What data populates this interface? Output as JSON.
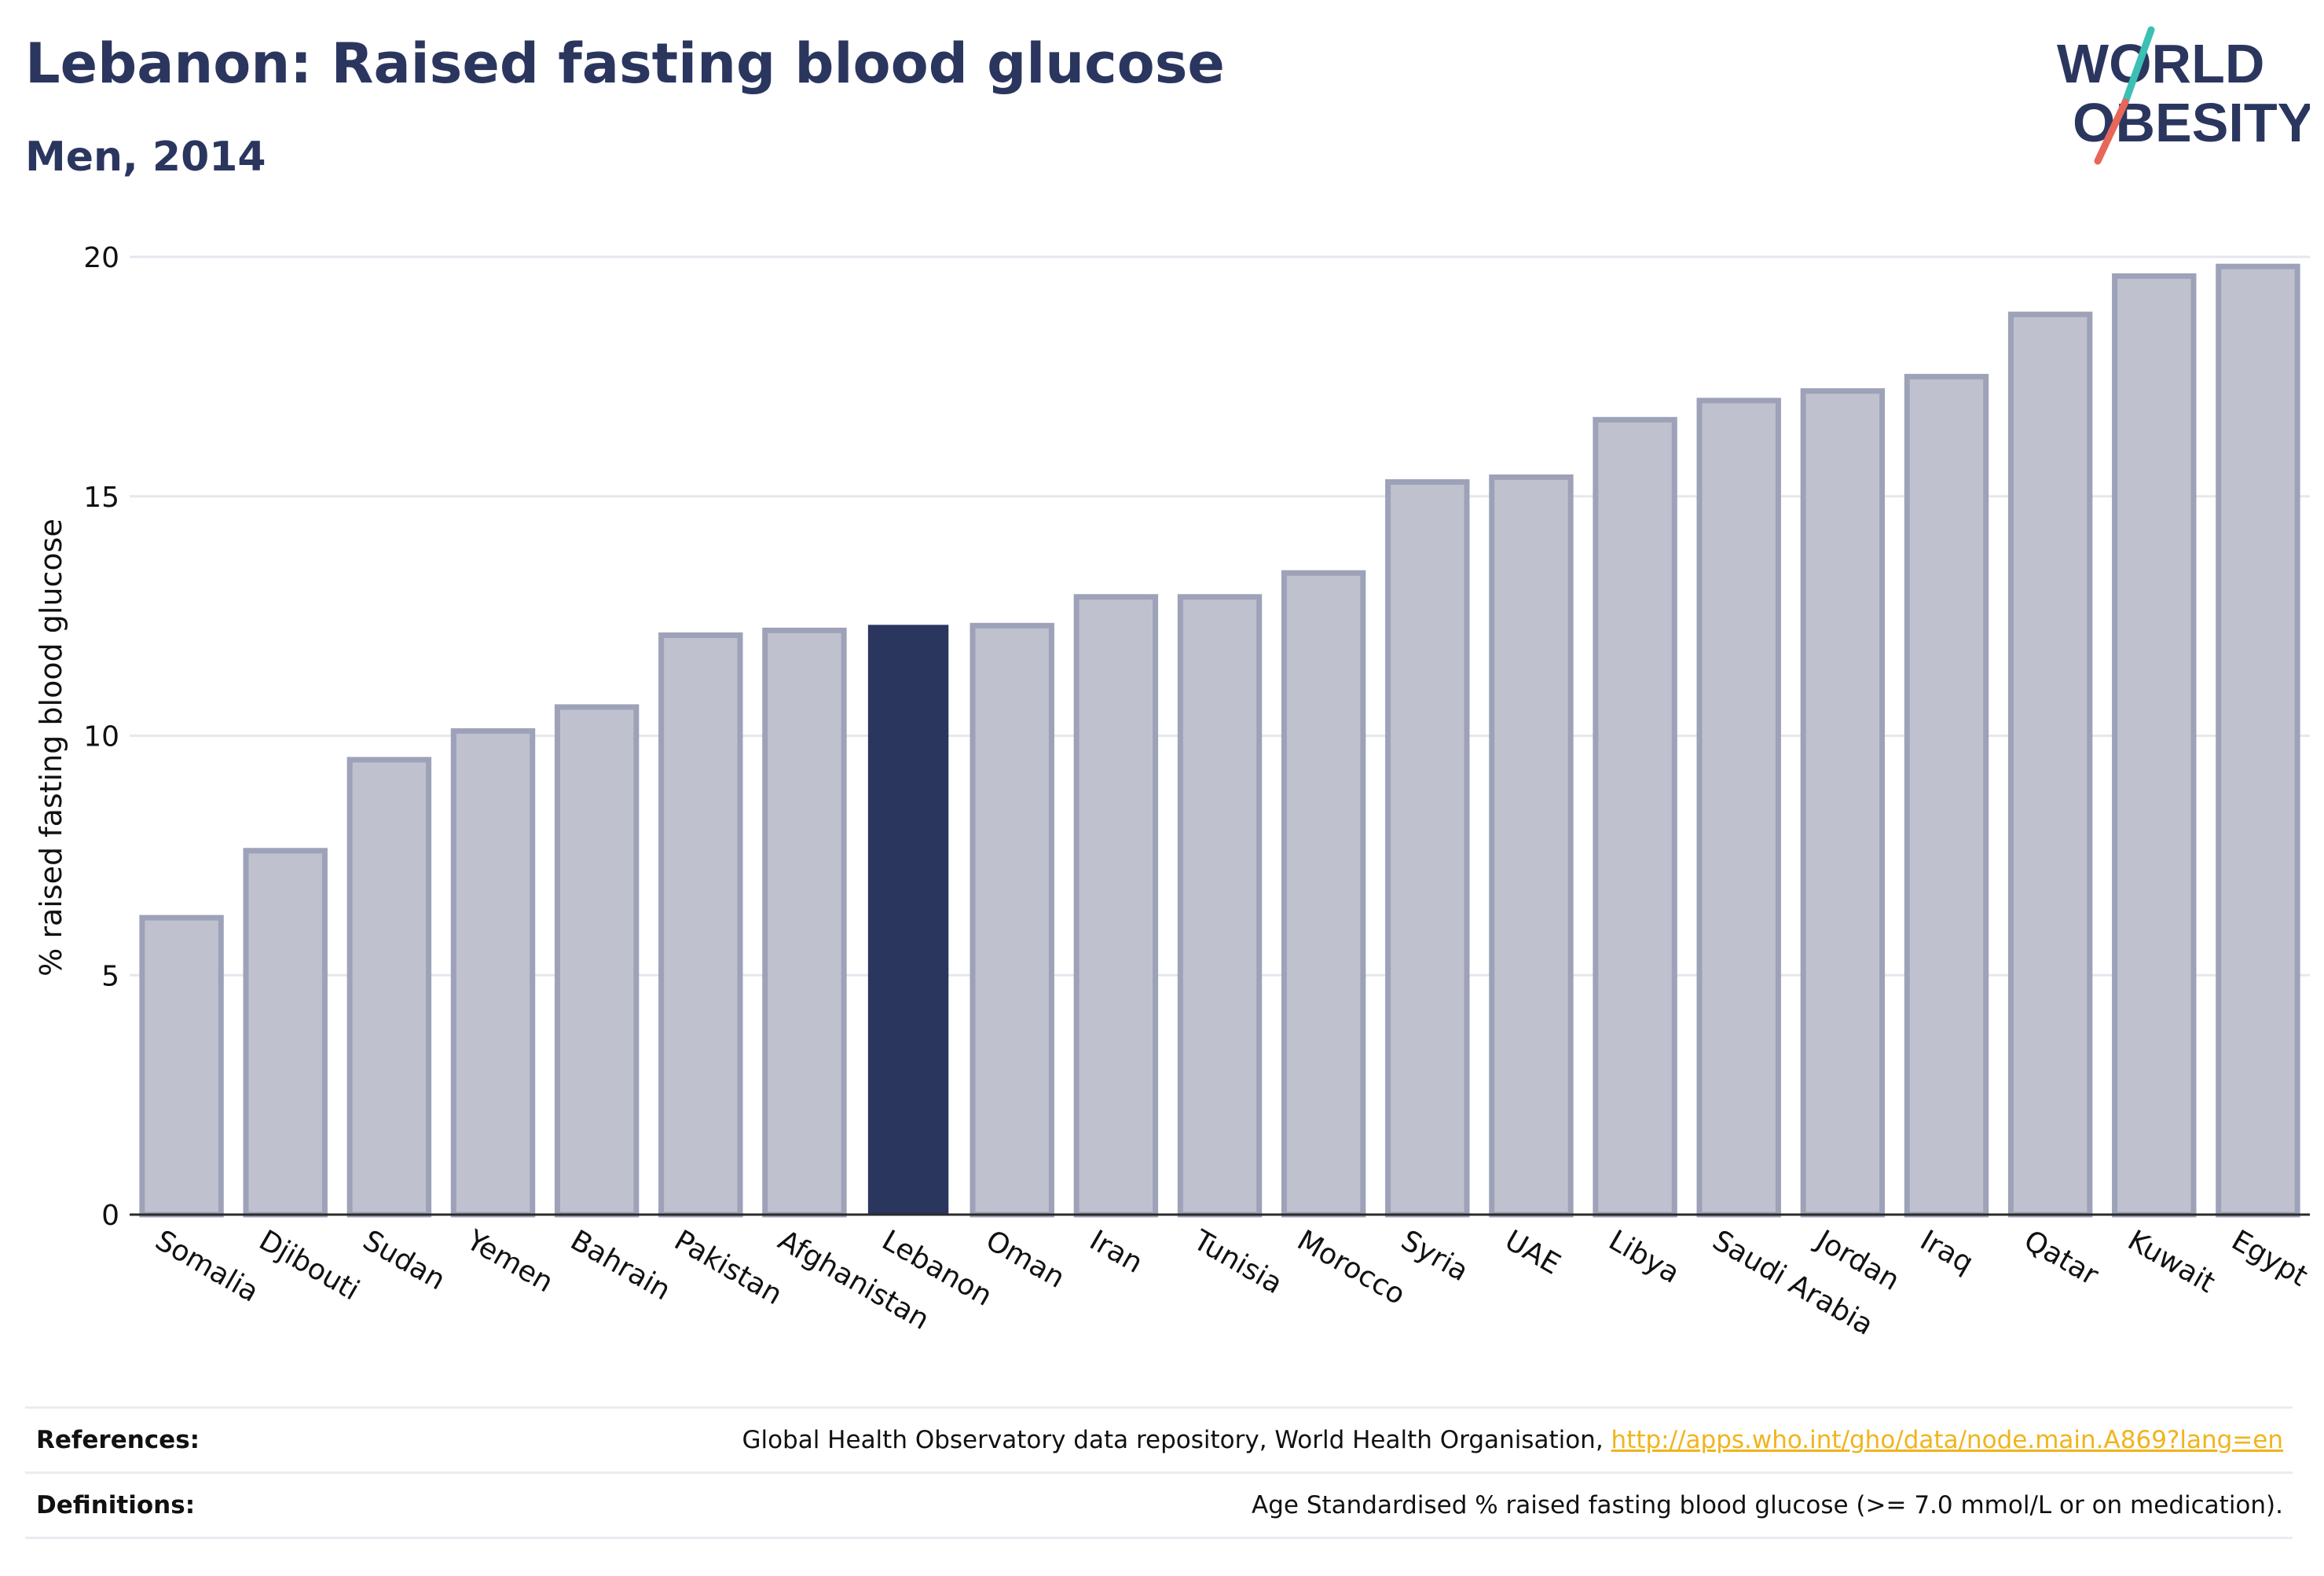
{
  "header": {
    "title": "Lebanon: Raised fasting blood glucose",
    "subtitle": "Men, 2014"
  },
  "logo": {
    "line1": "WORLD",
    "line2": "OBESITY",
    "colors": {
      "text": "#2b365f",
      "slash_top": "#3cbfb4",
      "slash_bottom": "#e8665a"
    }
  },
  "chart_data": {
    "type": "bar",
    "categories": [
      "Somalia",
      "Djibouti",
      "Sudan",
      "Yemen",
      "Bahrain",
      "Pakistan",
      "Afghanistan",
      "Lebanon",
      "Oman",
      "Iran",
      "Tunisia",
      "Morocco",
      "Syria",
      "UAE",
      "Libya",
      "Saudi Arabia",
      "Jordan",
      "Iraq",
      "Qatar",
      "Kuwait",
      "Egypt"
    ],
    "values": [
      6.2,
      7.6,
      9.5,
      10.1,
      10.6,
      12.1,
      12.2,
      12.3,
      12.3,
      12.9,
      12.9,
      13.4,
      15.3,
      15.4,
      16.6,
      17.0,
      17.2,
      17.5,
      18.8,
      19.6,
      19.8
    ],
    "highlight": "Lebanon",
    "ylabel": "% raised fasting blood glucose",
    "xlabel": "",
    "ylim": [
      0,
      20
    ],
    "yticks": [
      0,
      5,
      10,
      15,
      20
    ],
    "grid": true,
    "colors": {
      "bar_fill": "#bfc1ce",
      "bar_outline": "#9ea2b8",
      "highlight_fill": "#2b365f",
      "grid": "#e6e7ee",
      "axis": "#2b2b2b"
    }
  },
  "footer": {
    "references_label": "References:",
    "references_text": "Global Health Observatory data repository, World Health Organisation, ",
    "references_link": "http://apps.who.int/gho/data/node.main.A869?lang=en",
    "definitions_label": "Definitions:",
    "definitions_text": "Age Standardised % raised fasting blood glucose (>= 7.0 mmol/L or on medication)."
  }
}
